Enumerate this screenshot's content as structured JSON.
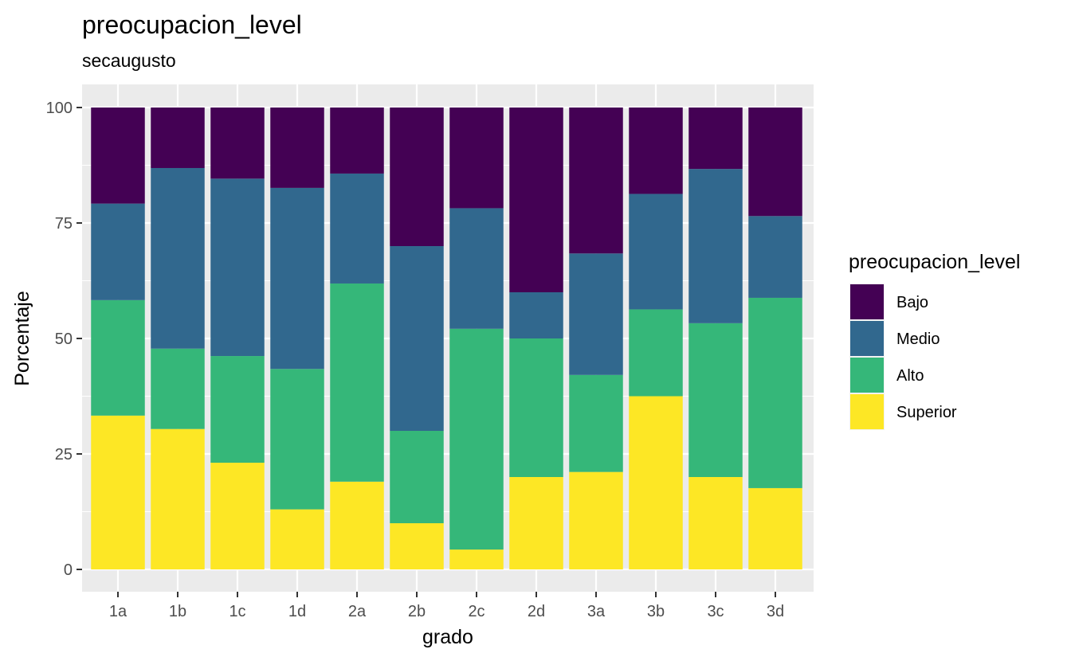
{
  "chart_data": {
    "type": "bar",
    "stacked": true,
    "title": "preocupacion_level",
    "subtitle": "secaugusto",
    "xlabel": "grado",
    "ylabel": "Porcentaje",
    "ylim": [
      0,
      100
    ],
    "yticks": [
      0,
      25,
      50,
      75,
      100
    ],
    "grid": true,
    "legend_position": "right",
    "legend_title": "preocupacion_level",
    "categories": [
      "1a",
      "1b",
      "1c",
      "1d",
      "2a",
      "2b",
      "2c",
      "2d",
      "3a",
      "3b",
      "3c",
      "3d"
    ],
    "series": [
      {
        "name": "Superior",
        "color": "#FDE725",
        "values": [
          33.3,
          30.4,
          23.1,
          13.0,
          19.0,
          10.0,
          4.3,
          20.0,
          21.1,
          37.5,
          20.0,
          17.6
        ]
      },
      {
        "name": "Alto",
        "color": "#35B779",
        "values": [
          25.0,
          17.4,
          23.1,
          30.4,
          42.9,
          20.0,
          47.8,
          30.0,
          21.0,
          18.8,
          33.3,
          41.2
        ]
      },
      {
        "name": "Medio",
        "color": "#31688E",
        "values": [
          20.9,
          39.1,
          38.4,
          39.2,
          23.8,
          40.0,
          26.1,
          10.0,
          26.3,
          25.0,
          33.4,
          17.7
        ]
      },
      {
        "name": "Bajo",
        "color": "#440154",
        "values": [
          20.8,
          13.1,
          15.4,
          17.4,
          14.3,
          30.0,
          21.8,
          40.0,
          31.6,
          18.7,
          13.3,
          23.5
        ]
      }
    ],
    "legend_order": [
      "Bajo",
      "Medio",
      "Alto",
      "Superior"
    ],
    "panel_background": "#EBEBEB",
    "grid_color": "#FFFFFF"
  }
}
